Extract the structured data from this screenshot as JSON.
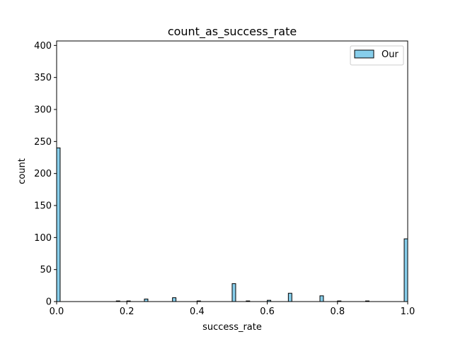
{
  "chart_data": {
    "type": "bar",
    "title": "count_as_success_rate",
    "xlabel": "success_rate",
    "ylabel": "count",
    "xlim": [
      0,
      1
    ],
    "ylim": [
      0,
      407
    ],
    "xticks": [
      "0.0",
      "0.2",
      "0.4",
      "0.6",
      "0.8",
      "1.0"
    ],
    "yticks": [
      "0",
      "50",
      "100",
      "150",
      "200",
      "250",
      "300",
      "350",
      "400"
    ],
    "grid": false,
    "legend_position": "top-right",
    "bin_width": 0.01,
    "series": [
      {
        "name": "Our",
        "color": "#87CEEB",
        "bins": [
          {
            "x": 0.0,
            "count": 240
          },
          {
            "x": 0.17,
            "count": 1
          },
          {
            "x": 0.2,
            "count": 1
          },
          {
            "x": 0.25,
            "count": 4
          },
          {
            "x": 0.33,
            "count": 6
          },
          {
            "x": 0.4,
            "count": 1
          },
          {
            "x": 0.5,
            "count": 28
          },
          {
            "x": 0.54,
            "count": 1
          },
          {
            "x": 0.6,
            "count": 2
          },
          {
            "x": 0.66,
            "count": 13
          },
          {
            "x": 0.75,
            "count": 9
          },
          {
            "x": 0.8,
            "count": 1
          },
          {
            "x": 0.88,
            "count": 1
          },
          {
            "x": 0.99,
            "count": 98
          }
        ]
      }
    ]
  }
}
